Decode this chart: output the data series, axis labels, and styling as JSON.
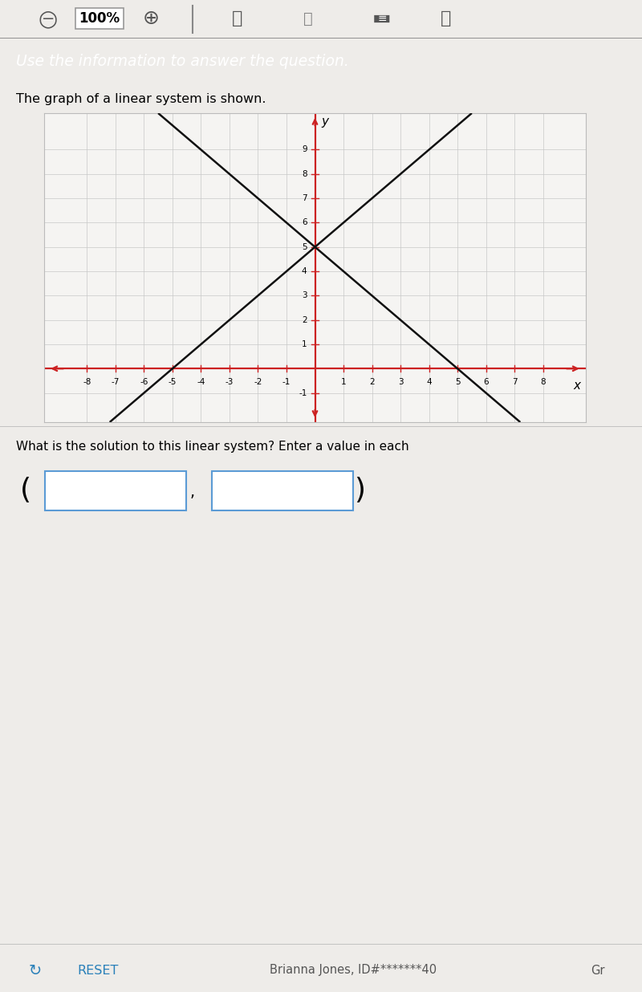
{
  "toolbar_bg": "#e0dedd",
  "header_bg": "#2d4a6b",
  "header_text": "Use the information to answer the question.",
  "subheader_text": "The graph of a linear system is shown.",
  "question_text": "What is the solution to this linear system? Enter a value in each",
  "footer_text": "Brianna Jones, ID#*******40",
  "reset_text": "RESET",
  "page_bg": "#eeece9",
  "graph_bg": "#f5f4f2",
  "graph_border": "#bbbbbb",
  "axis_color": "#cc2222",
  "grid_color": "#c8c8c8",
  "line_color": "#111111",
  "line_width": 1.8,
  "xlim": [
    -9.5,
    9.5
  ],
  "ylim": [
    -2.2,
    10.5
  ],
  "xtick_vals": [
    -8,
    -7,
    -6,
    -5,
    -4,
    -3,
    -2,
    -1,
    1,
    2,
    3,
    4,
    5,
    6,
    7,
    8
  ],
  "ytick_vals": [
    1,
    2,
    3,
    4,
    5,
    6,
    7,
    8,
    9
  ],
  "neg1_label": true,
  "line1_slope": -1,
  "line1_yint": 5,
  "line2_slope": 1,
  "line2_yint": 5,
  "intersection_x": 0,
  "intersection_y": 5,
  "box_edge_color": "#5b9bd5",
  "box_fill_color": "#ffffff",
  "sep_color": "#bbbbbb",
  "footer_reset_color": "#2980b9",
  "footer_text_color": "#555555"
}
